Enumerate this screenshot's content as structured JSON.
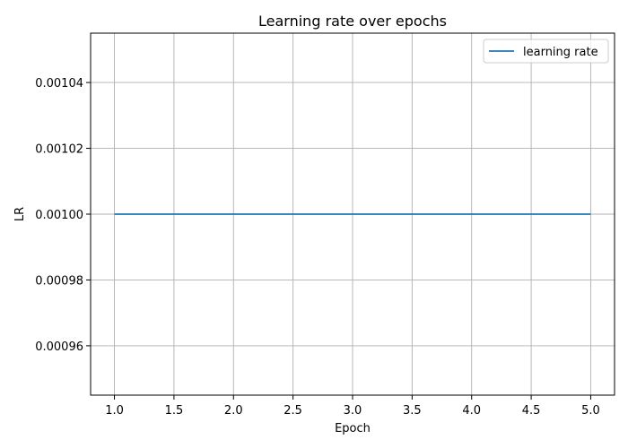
{
  "chart_data": {
    "type": "line",
    "title": "Learning rate over epochs",
    "xlabel": "Epoch",
    "ylabel": "LR",
    "x": [
      1,
      2,
      3,
      4,
      5
    ],
    "series": [
      {
        "name": "learning rate",
        "values": [
          0.001,
          0.001,
          0.001,
          0.001,
          0.001
        ],
        "color": "#1f77b4"
      }
    ],
    "xlim": [
      0.8,
      5.2
    ],
    "ylim": [
      0.000945,
      0.001055
    ],
    "xticks": [
      1.0,
      1.5,
      2.0,
      2.5,
      3.0,
      3.5,
      4.0,
      4.5,
      5.0
    ],
    "xtick_labels": [
      "1.0",
      "1.5",
      "2.0",
      "2.5",
      "3.0",
      "3.5",
      "4.0",
      "4.5",
      "5.0"
    ],
    "yticks": [
      0.00096,
      0.00098,
      0.001,
      0.00102,
      0.00104
    ],
    "ytick_labels": [
      "0.00096",
      "0.00098",
      "0.00100",
      "0.00102",
      "0.00104"
    ],
    "grid": true,
    "legend_position": "top-right"
  }
}
